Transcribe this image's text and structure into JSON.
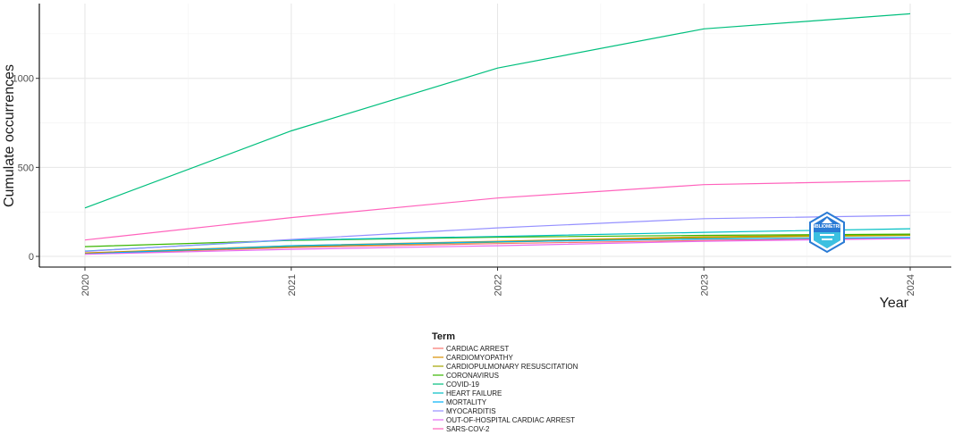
{
  "chart_data": {
    "type": "line",
    "title": "",
    "xlabel": "Year",
    "ylabel": "Cumulate occurrences",
    "x": [
      "2020",
      "2021",
      "2022",
      "2023",
      "2024"
    ],
    "ylim": [
      -60,
      1420
    ],
    "yticks": [
      0,
      500,
      1000
    ],
    "grid": true,
    "legend_title": "Term",
    "legend_placement": "bottom",
    "series": [
      {
        "name": "CARDIAC ARREST",
        "color": "#F8766D",
        "values": [
          14,
          50,
          72,
          90,
          104
        ]
      },
      {
        "name": "CARDIOMYOPATHY",
        "color": "#D89000",
        "values": [
          20,
          60,
          85,
          110,
          122
        ]
      },
      {
        "name": "CARDIOPULMONARY RESUSCITATION",
        "color": "#A3A500",
        "values": [
          15,
          55,
          80,
          105,
          118
        ]
      },
      {
        "name": "CORONAVIRUS",
        "color": "#39B600",
        "values": [
          55,
          90,
          108,
          118,
          125
        ]
      },
      {
        "name": "COVID-19",
        "color": "#00BF7D",
        "values": [
          272,
          705,
          1058,
          1278,
          1363
        ]
      },
      {
        "name": "HEART FAILURE",
        "color": "#00BFC4",
        "values": [
          30,
          92,
          112,
          135,
          155
        ]
      },
      {
        "name": "MORTALITY",
        "color": "#00B0F6",
        "values": [
          14,
          60,
          82,
          98,
          106
        ]
      },
      {
        "name": "MYOCARDITIS",
        "color": "#9590FF",
        "values": [
          28,
          95,
          160,
          212,
          230
        ]
      },
      {
        "name": "OUT-OF-HOSPITAL CARDIAC ARREST",
        "color": "#E76BF3",
        "values": [
          12,
          40,
          60,
          85,
          100
        ]
      },
      {
        "name": "SARS-COV-2",
        "color": "#FF62BC",
        "values": [
          92,
          218,
          328,
          403,
          425
        ]
      }
    ]
  },
  "watermark": {
    "text": "BIBLIOMETRIX",
    "colors": [
      "#2A7BD5",
      "#3CC0E0"
    ]
  }
}
